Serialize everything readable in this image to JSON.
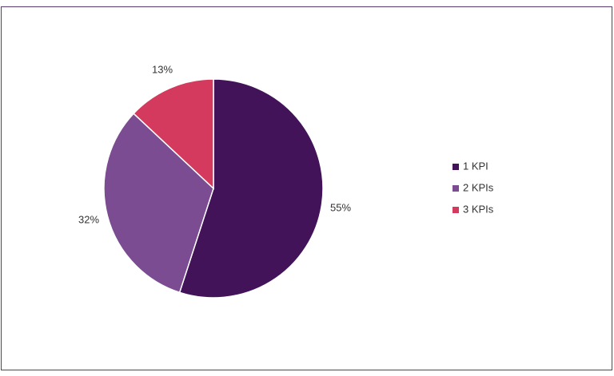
{
  "chart_data": {
    "type": "pie",
    "categories": [
      "1 KPI",
      "2 KPIs",
      "3 KPIs"
    ],
    "values": [
      55,
      32,
      13
    ],
    "value_labels": [
      "55%",
      "32%",
      "13%"
    ],
    "colors": [
      "#421359",
      "#7b4c91",
      "#d43a5d"
    ],
    "legend": "right"
  }
}
